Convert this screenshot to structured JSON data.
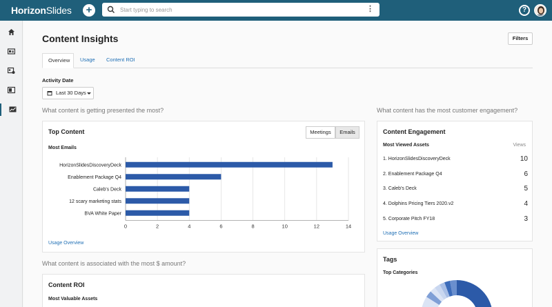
{
  "app": {
    "logo_bold": "Horizon",
    "logo_light": "Slides",
    "add_label": "+",
    "help_label": "?"
  },
  "search": {
    "placeholder": "Start typing to search",
    "value": "",
    "menu": "⋮"
  },
  "sidebar": {
    "items": [
      "home-icon",
      "id-card-icon",
      "people-card-icon",
      "presentation-icon",
      "insights-icon"
    ],
    "active": 4
  },
  "page": {
    "title": "Content Insights",
    "filters_label": "Filters",
    "tabs": [
      {
        "label": "Overview",
        "active": true
      },
      {
        "label": "Usage",
        "active": false
      },
      {
        "label": "Content ROI",
        "active": false
      }
    ],
    "activity_date_label": "Activity Date",
    "activity_date_value": "Last 30 Days"
  },
  "questions": {
    "most_presented": "What content is getting presented the most?",
    "most_engagement": "What content has the most customer engagement?",
    "most_amount": "What content is associated with the most $ amount?"
  },
  "top_content": {
    "title": "Top Content",
    "toggle": [
      "Meetings",
      "Emails"
    ],
    "toggle_selected": "Emails",
    "subtitle": "Most Emails",
    "link": "Usage Overview"
  },
  "chart_data": {
    "type": "bar",
    "orientation": "horizontal",
    "categories": [
      "HorizonSlidesDiscoveryDeck",
      "Enablement Package Q4",
      "Caleb's Deck",
      "12 scary marketing stats",
      "BVA White Paper"
    ],
    "values": [
      13,
      6,
      4,
      4,
      4
    ],
    "xlim": [
      0,
      14
    ],
    "xticks": [
      "0",
      "2",
      "4",
      "6",
      "8",
      "10",
      "12",
      "14"
    ],
    "grid": true,
    "color": "#2c5aa8"
  },
  "engagement": {
    "title": "Content Engagement",
    "subtitle": "Most Viewed Assets",
    "col_label": "Views",
    "rows": [
      {
        "name": "1. HorizonSlidesDiscoveryDeck",
        "views": "10"
      },
      {
        "name": "2. Enablement Package Q4",
        "views": "6"
      },
      {
        "name": "3. Caleb's Deck",
        "views": "5"
      },
      {
        "name": "4. Dolphins Pricing Tiers 2020.v2",
        "views": "4"
      },
      {
        "name": "5. Corporate Pitch FY18",
        "views": "3"
      }
    ],
    "link": "Usage Overview"
  },
  "tags": {
    "title": "Tags",
    "subtitle": "Top Categories"
  },
  "roi": {
    "title": "Content ROI",
    "subtitle": "Most Valuable Assets"
  },
  "colors": {
    "brand": "#1f5f7a",
    "link": "#1f6fb5",
    "bar": "#2c5aa8"
  }
}
